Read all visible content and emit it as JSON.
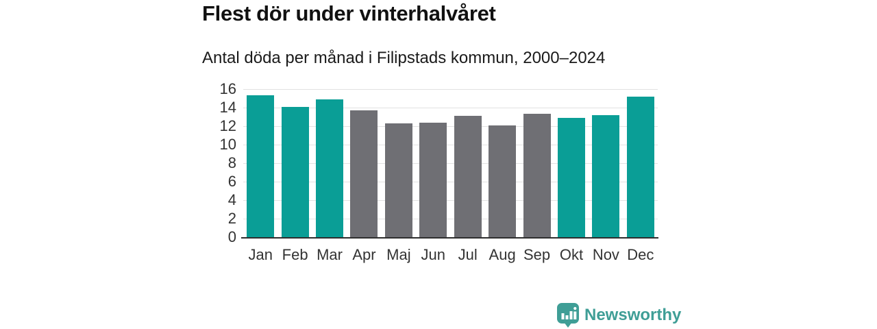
{
  "header": {
    "title": "Flest dör under vinterhalvåret",
    "subtitle": "Antal döda per månad i Filipstads kommun, 2000–2024"
  },
  "chart_data": {
    "type": "bar",
    "categories": [
      "Jan",
      "Feb",
      "Mar",
      "Apr",
      "Maj",
      "Jun",
      "Jul",
      "Aug",
      "Sep",
      "Okt",
      "Nov",
      "Dec"
    ],
    "values": [
      15.3,
      14.1,
      14.9,
      13.7,
      12.3,
      12.4,
      13.1,
      12.1,
      13.3,
      12.9,
      13.2,
      15.2
    ],
    "bar_groups": [
      "winter",
      "winter",
      "winter",
      "summer",
      "summer",
      "summer",
      "summer",
      "summer",
      "summer",
      "winter",
      "winter",
      "winter"
    ],
    "group_colors": {
      "winter": "#0a9e96",
      "summer": "#6f6f74"
    },
    "title": "Flest dör under vinterhalvåret",
    "subtitle": "Antal döda per månad i Filipstads kommun, 2000–2024",
    "xlabel": "",
    "ylabel": "",
    "ylim": [
      0,
      16
    ],
    "yticks": [
      0,
      2,
      4,
      6,
      8,
      10,
      12,
      14,
      16
    ],
    "grid": true,
    "legend": false
  },
  "footer": {
    "brand": "Newsworthy",
    "brand_color": "#3f9e96",
    "logo_icon": "bar-chart-speech-bubble-icon"
  },
  "colors": {
    "background": "#ffffff",
    "bar_winter": "#0a9e96",
    "bar_summer": "#6f6f74",
    "gridline": "#e2e2e2",
    "axis": "#2e2e2e",
    "tick_text": "#333333",
    "title_text": "#111111",
    "subtitle_text": "#1a1a1a"
  }
}
